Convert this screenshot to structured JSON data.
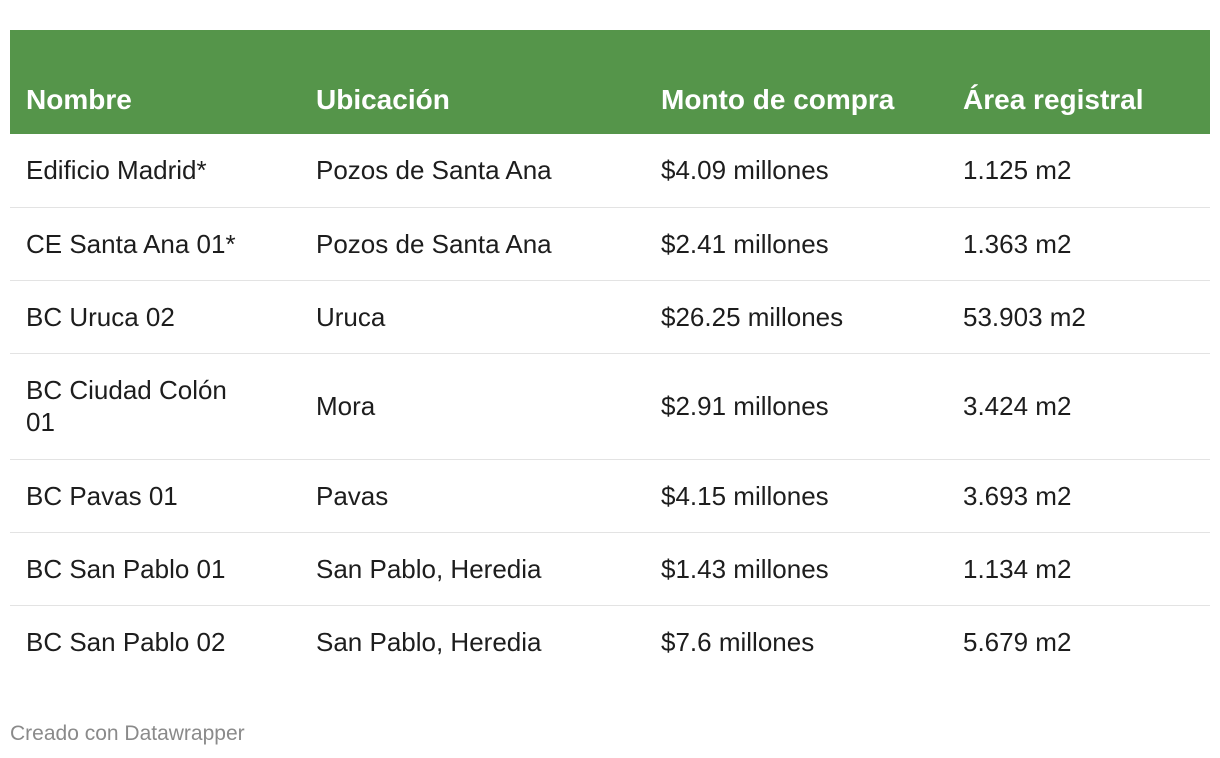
{
  "chart_data": {
    "type": "table",
    "columns": [
      "Nombre",
      "Ubicación",
      "Monto de compra",
      "Área registral"
    ],
    "rows": [
      [
        "Edificio Madrid*",
        "Pozos de Santa Ana",
        "$4.09 millones",
        "1.125 m2"
      ],
      [
        "CE Santa Ana 01*",
        "Pozos de Santa Ana",
        "$2.41 millones",
        "1.363 m2"
      ],
      [
        "BC Uruca 02",
        "Uruca",
        "$26.25 millones",
        "53.903 m2"
      ],
      [
        "BC Ciudad Colón 01",
        "Mora",
        "$2.91 millones",
        "3.424 m2"
      ],
      [
        "BC Pavas 01",
        "Pavas",
        "$4.15 millones",
        "3.693 m2"
      ],
      [
        "BC San Pablo 01",
        "San Pablo, Heredia",
        "$1.43 millones",
        "1.134 m2"
      ],
      [
        "BC San Pablo 02",
        "San Pablo, Heredia",
        "$7.6 millones",
        "5.679 m2"
      ]
    ],
    "header_color": "#55954a"
  },
  "footer": {
    "credit": "Creado con Datawrapper"
  }
}
